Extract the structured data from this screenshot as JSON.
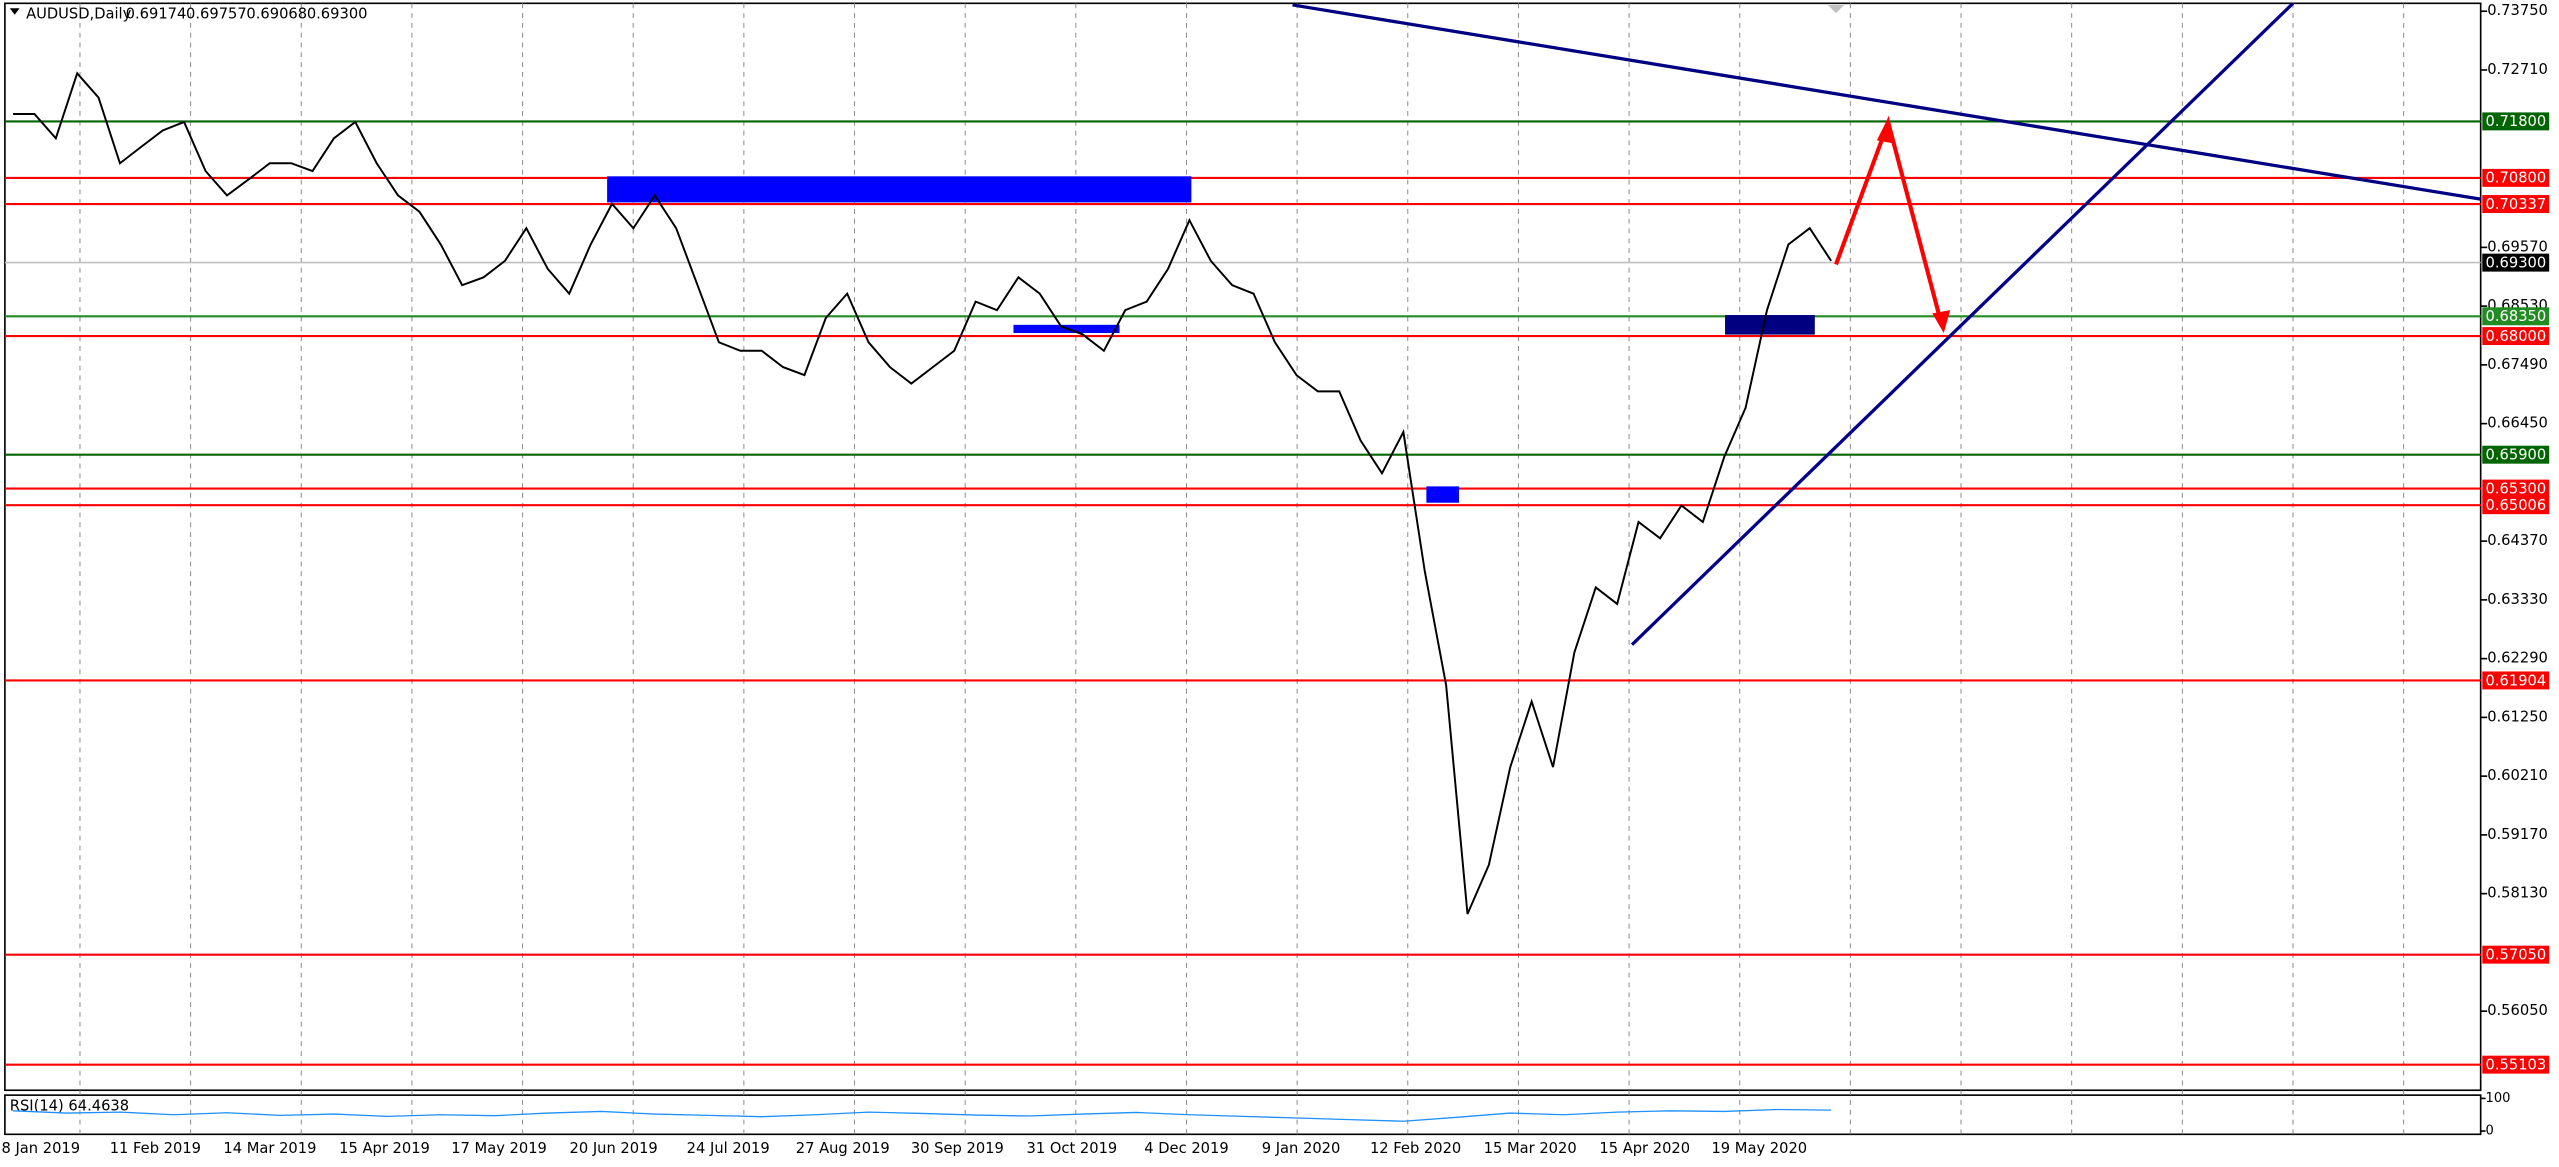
{
  "chart_data": {
    "type": "line",
    "symbol": "AUDUSD,Daily",
    "ohlc": [
      0.69174,
      0.69757,
      0.69068,
      {
        "value": 0.693,
        "label": "0.69300"
      }
    ],
    "color": "#000000",
    "values": [
      0.7193,
      0.7193,
      0.715,
      0.7265,
      0.7222,
      0.7106,
      0.7135,
      0.7164,
      0.7179,
      0.7092,
      0.7049,
      0.7077,
      0.7106,
      0.7106,
      0.7092,
      0.715,
      0.7179,
      0.7106,
      0.7049,
      0.702,
      0.6962,
      0.689,
      0.6904,
      0.6933,
      0.6991,
      0.6919,
      0.6875,
      0.6962,
      0.7034,
      0.6991,
      0.7049,
      0.6991,
      0.689,
      0.6789,
      0.6774,
      0.6774,
      0.6745,
      0.6731,
      0.6832,
      0.6875,
      0.6789,
      0.6745,
      0.6716,
      0.6745,
      0.6774,
      0.6861,
      0.6846,
      0.6904,
      0.6875,
      0.6817,
      0.6803,
      0.6774,
      0.6846,
      0.6861,
      0.6919,
      0.7005,
      0.6933,
      0.689,
      0.6875,
      0.6789,
      0.6731,
      0.6702,
      0.6702,
      0.6615,
      0.6557,
      0.663,
      0.6384,
      0.6182,
      0.5777,
      0.5864,
      0.6037,
      0.6153,
      0.6037,
      0.624,
      0.6355,
      0.6326,
      0.6471,
      0.6442,
      0.65,
      0.6471,
      0.6586,
      0.6673,
      0.6846,
      0.6962,
      0.6991,
      0.6933
    ],
    "ylim": [
      0.5465,
      0.7389
    ],
    "yticks": [
      {
        "value": 0.7375,
        "label": "0.73750"
      },
      {
        "value": 0.7271,
        "label": "0.72710"
      },
      {
        "value": 0.6957,
        "label": "0.69570"
      },
      {
        "value": 0.6853,
        "label": "0.68530"
      },
      {
        "value": 0.6749,
        "label": "0.67490"
      },
      {
        "value": 0.6645,
        "label": "0.66450"
      },
      {
        "value": 0.6437,
        "label": "0.64370"
      },
      {
        "value": 0.6333,
        "label": "0.63330"
      },
      {
        "value": 0.6229,
        "label": "0.62290"
      },
      {
        "value": 0.6125,
        "label": "0.61250"
      },
      {
        "value": 0.6021,
        "label": "0.60210"
      },
      {
        "value": 0.5917,
        "label": "0.59170"
      },
      {
        "value": 0.5813,
        "label": "0.58130"
      },
      {
        "value": 0.5605,
        "label": "0.56050"
      }
    ],
    "xticks": [
      "8 Jan 2019",
      "11 Feb 2019",
      "14 Mar 2019",
      "15 Apr 2019",
      "17 May 2019",
      "20 Jun 2019",
      "24 Jul 2019",
      "27 Aug 2019",
      "30 Sep 2019",
      "31 Oct 2019",
      "4 Dec 2019",
      "9 Jan 2020",
      "12 Feb 2020",
      "15 Mar 2020",
      "15 Apr 2020",
      "19 May 2020"
    ],
    "levels": [
      {
        "value": 0.718,
        "label": "0.71800",
        "color": "#006400"
      },
      {
        "value": 0.708,
        "label": "0.70800",
        "color": "#ff0000"
      },
      {
        "value": 0.70337,
        "label": "0.70337",
        "color": "#ff0000"
      },
      {
        "value": 0.6835,
        "label": "0.68350",
        "color": "#228b22"
      },
      {
        "value": 0.68,
        "label": "0.68000",
        "color": "#ff0000"
      },
      {
        "value": 0.659,
        "label": "0.65900",
        "color": "#006400"
      },
      {
        "value": 0.653,
        "label": "0.65300",
        "color": "#ff0000"
      },
      {
        "value": 0.65006,
        "label": "0.65006",
        "color": "#ff0000"
      },
      {
        "value": 0.61904,
        "label": "0.61904",
        "color": "#ff0000"
      },
      {
        "value": 0.5705,
        "label": "0.57050",
        "color": "#ff0000"
      },
      {
        "value": 0.55103,
        "label": "0.55103",
        "color": "#ff0000"
      }
    ],
    "rsi": {
      "title": "RSI(14) 64.4638",
      "color": "#1e90ff",
      "values": [
        62,
        55,
        58,
        50,
        56,
        48,
        52,
        45,
        50,
        47,
        55,
        60,
        52,
        48,
        44,
        50,
        58,
        54,
        49,
        46,
        52,
        57,
        50,
        45,
        40,
        35,
        30,
        42,
        55,
        50,
        58,
        62,
        60,
        66,
        64
      ],
      "ylim": [
        0,
        100
      ],
      "yticks": [
        100,
        0
      ]
    }
  }
}
